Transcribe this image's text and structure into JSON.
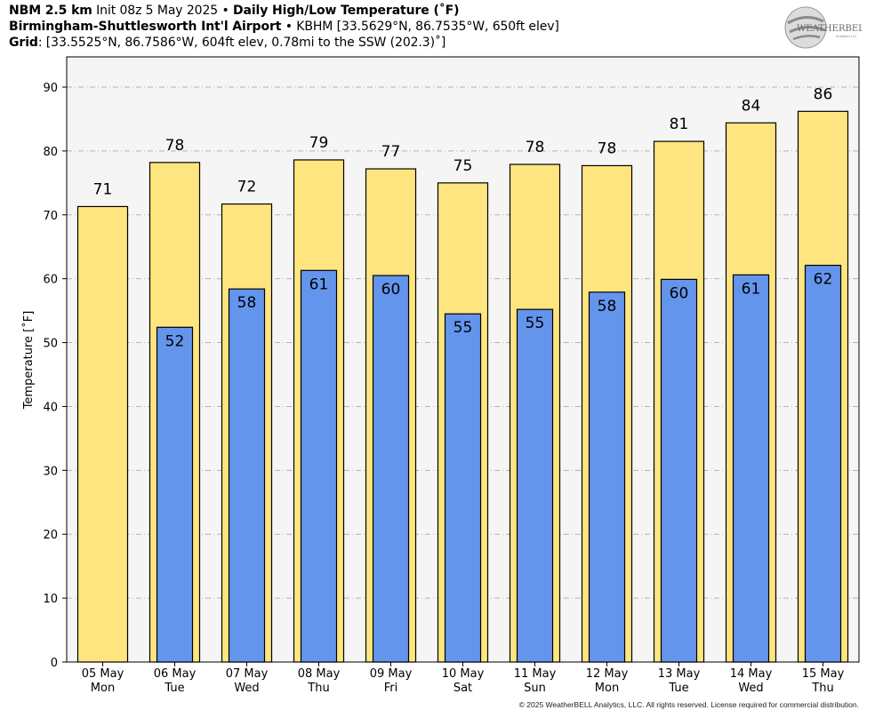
{
  "header": {
    "line1": {
      "model": "NBM 2.5 km",
      "init": "Init 08z 5 May 2025",
      "bullet": "•",
      "product": "Daily High/Low Temperature (˚F)"
    },
    "line2": {
      "station_name": "Birmingham-Shuttlesworth Int'l Airport",
      "bullet": "•",
      "station_info": "KBHM [33.5629°N, 86.7535°W, 650ft elev]"
    },
    "line3": {
      "label": "Grid",
      "info": ": [33.5525°N, 86.7586°W, 604ft elev, 0.78mi to the SSW (202.3)˚]"
    }
  },
  "logo": {
    "text_main": "WEATHERBELL",
    "text_sub": "Analytics LLC"
  },
  "footer": "© 2025 WeatherBELL Analytics, LLC. All rights reserved. License required for commercial distribution.",
  "colors": {
    "high_bar": "#ffe57f",
    "low_bar": "#6495ed",
    "plot_bg": "#f5f5f5",
    "grid": "#b3b3b3"
  },
  "chart_data": {
    "type": "bar",
    "title": "Daily High/Low Temperature (˚F)",
    "ylabel": "Temperature [˚F]",
    "xlabel": "",
    "ylim": [
      0,
      90
    ],
    "yticks": [
      0,
      10,
      20,
      30,
      40,
      50,
      60,
      70,
      80,
      90
    ],
    "grid": true,
    "categories": [
      {
        "date": "05 May",
        "day": "Mon"
      },
      {
        "date": "06 May",
        "day": "Tue"
      },
      {
        "date": "07 May",
        "day": "Wed"
      },
      {
        "date": "08 May",
        "day": "Thu"
      },
      {
        "date": "09 May",
        "day": "Fri"
      },
      {
        "date": "10 May",
        "day": "Sat"
      },
      {
        "date": "11 May",
        "day": "Sun"
      },
      {
        "date": "12 May",
        "day": "Mon"
      },
      {
        "date": "13 May",
        "day": "Tue"
      },
      {
        "date": "14 May",
        "day": "Wed"
      },
      {
        "date": "15 May",
        "day": "Thu"
      }
    ],
    "series": [
      {
        "key": "high",
        "values": [
          71.3,
          78.2,
          71.7,
          78.6,
          77.2,
          75.0,
          77.9,
          77.7,
          81.5,
          84.4,
          86.2
        ],
        "labels": [
          "71",
          "78",
          "72",
          "79",
          "77",
          "75",
          "78",
          "78",
          "81",
          "84",
          "86"
        ]
      },
      {
        "key": "low",
        "values": [
          null,
          52.4,
          58.4,
          61.3,
          60.5,
          54.5,
          55.2,
          57.9,
          59.9,
          60.6,
          62.1
        ],
        "labels": [
          "",
          "52",
          "58",
          "61",
          "60",
          "55",
          "55",
          "58",
          "60",
          "61",
          "62"
        ]
      }
    ]
  }
}
